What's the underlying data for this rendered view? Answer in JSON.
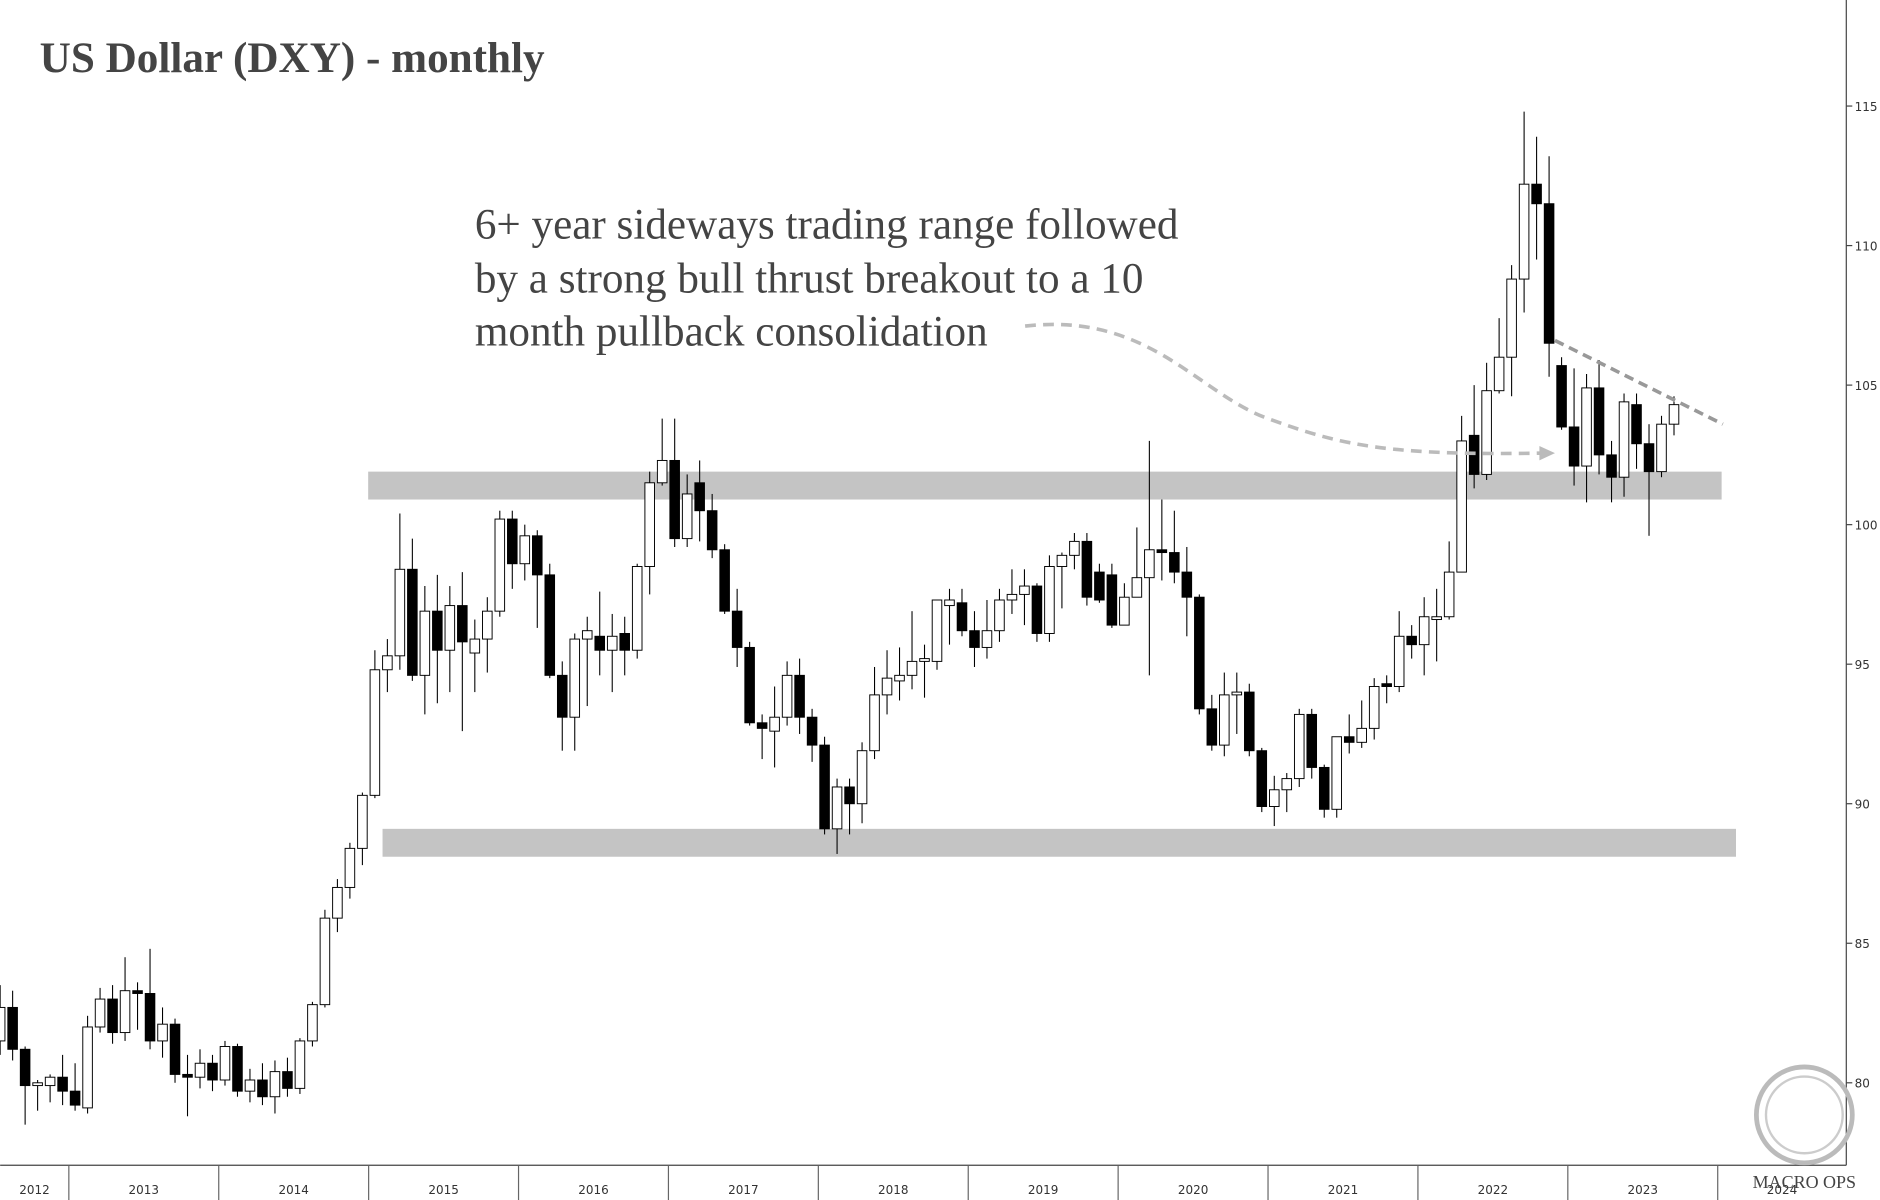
{
  "chart_data": {
    "type": "candlestick",
    "title": "US Dollar (DXY) - monthly",
    "annotation": [
      "6+ year sideways trading range followed",
      "by a strong bull thrust breakout to a 10",
      "month pullback consolidation"
    ],
    "watermark": "MACRO OPS",
    "year_labels": [
      "2012",
      "2013",
      "2014",
      "2015",
      "2016",
      "2017",
      "2018",
      "2019",
      "2020",
      "2021",
      "2022",
      "2023",
      "2024"
    ],
    "open": [
      81.5,
      82.7,
      81.2,
      79.9,
      79.9,
      80.2,
      79.7,
      79.1,
      82.0,
      83.0,
      81.8,
      83.3,
      83.2,
      81.5,
      82.1,
      80.3,
      80.2,
      80.7,
      80.1,
      81.3,
      79.7,
      80.1,
      79.5,
      80.4,
      79.8,
      81.5,
      82.8,
      85.9,
      87.0,
      88.4,
      90.3,
      94.8,
      95.3,
      98.4,
      94.6,
      96.9,
      95.5,
      97.1,
      95.4,
      95.9,
      96.9,
      100.2,
      98.6,
      99.6,
      98.2,
      94.6,
      93.1,
      95.9,
      96.0,
      95.5,
      96.1,
      95.5,
      98.5,
      101.5,
      102.3,
      99.5,
      101.5,
      100.5,
      99.1,
      96.9,
      95.6,
      92.9,
      92.6,
      93.1,
      94.6,
      93.1,
      92.1,
      89.1,
      90.6,
      90.0,
      91.9,
      93.9,
      94.4,
      94.6,
      95.1,
      95.1,
      97.1,
      97.2,
      96.2,
      95.6,
      96.2,
      97.3,
      97.5,
      97.8,
      96.1,
      98.5,
      98.9,
      99.4,
      98.3,
      98.2,
      96.4,
      97.4,
      98.1,
      99.1,
      99.0,
      98.3,
      97.4,
      93.4,
      92.1,
      93.9,
      94.0,
      91.9,
      89.9,
      90.5,
      90.9,
      93.2,
      91.3,
      89.8,
      92.4,
      92.2,
      92.7,
      94.3,
      94.2,
      96.0,
      95.7,
      96.6,
      96.7,
      98.3,
      103.2,
      101.8,
      104.8,
      106.0,
      108.8,
      112.2,
      111.5,
      105.7,
      103.5,
      102.1,
      104.9,
      102.5,
      101.7,
      104.3,
      102.9,
      101.9,
      103.6
    ],
    "high": [
      83.5,
      83.3,
      81.3,
      80.1,
      80.3,
      81.0,
      80.7,
      82.4,
      83.4,
      83.5,
      84.5,
      83.6,
      84.8,
      82.7,
      82.3,
      81.0,
      81.2,
      81.0,
      81.5,
      81.4,
      80.5,
      80.7,
      80.8,
      80.9,
      81.6,
      82.9,
      86.2,
      87.3,
      88.6,
      90.4,
      95.5,
      95.9,
      100.4,
      99.5,
      97.8,
      98.2,
      97.8,
      98.3,
      96.6,
      97.4,
      100.5,
      100.5,
      100.0,
      99.8,
      98.6,
      95.1,
      96.1,
      96.7,
      97.6,
      96.8,
      96.7,
      98.6,
      101.9,
      103.8,
      103.8,
      101.8,
      102.3,
      101.1,
      99.3,
      97.7,
      95.8,
      93.2,
      94.2,
      95.1,
      95.2,
      93.4,
      92.4,
      90.9,
      90.9,
      92.2,
      94.9,
      95.5,
      95.6,
      96.9,
      95.7,
      97.3,
      97.7,
      97.7,
      96.9,
      97.3,
      97.7,
      98.4,
      98.4,
      97.9,
      98.9,
      99.0,
      99.7,
      99.7,
      98.6,
      98.6,
      97.9,
      99.9,
      103.0,
      100.9,
      100.5,
      99.2,
      97.5,
      93.9,
      94.7,
      94.7,
      94.3,
      92.0,
      91.0,
      91.1,
      93.4,
      93.4,
      91.4,
      92.4,
      93.2,
      93.7,
      94.5,
      94.6,
      96.9,
      96.4,
      97.4,
      97.7,
      99.4,
      103.9,
      105.0,
      105.8,
      107.4,
      109.3,
      114.8,
      113.9,
      113.2,
      106.0,
      105.6,
      105.4,
      105.9,
      103.0,
      104.7,
      104.7,
      103.6,
      103.9,
      104.6
    ],
    "low": [
      81.0,
      80.8,
      78.5,
      79.0,
      79.3,
      79.2,
      79.0,
      78.9,
      81.8,
      81.4,
      81.5,
      81.9,
      81.2,
      80.9,
      80.0,
      78.8,
      79.8,
      79.7,
      79.9,
      79.5,
      79.3,
      79.2,
      78.9,
      79.5,
      79.6,
      81.3,
      82.7,
      85.4,
      86.6,
      87.8,
      90.2,
      94.0,
      94.8,
      94.4,
      93.2,
      93.6,
      94.0,
      92.6,
      94.0,
      94.7,
      96.7,
      97.7,
      98.0,
      96.3,
      94.5,
      91.9,
      91.9,
      93.5,
      94.6,
      94.0,
      94.6,
      95.2,
      97.5,
      101.4,
      99.2,
      99.2,
      99.4,
      98.8,
      96.8,
      94.9,
      92.8,
      91.6,
      91.3,
      92.8,
      92.5,
      91.5,
      88.9,
      88.2,
      88.9,
      89.3,
      91.6,
      93.2,
      93.7,
      94.1,
      93.8,
      94.8,
      95.7,
      96.0,
      94.9,
      95.2,
      95.8,
      96.8,
      96.4,
      95.8,
      95.8,
      97.0,
      98.4,
      97.1,
      97.2,
      96.3,
      96.4,
      97.4,
      94.6,
      98.0,
      97.9,
      96.0,
      93.2,
      91.9,
      91.7,
      92.5,
      91.7,
      89.7,
      89.2,
      89.7,
      90.6,
      90.9,
      89.5,
      89.5,
      91.8,
      92.0,
      92.3,
      93.6,
      94.0,
      95.2,
      94.6,
      95.1,
      96.6,
      98.3,
      101.3,
      101.6,
      104.7,
      104.6,
      107.6,
      109.5,
      105.3,
      103.4,
      101.4,
      100.8,
      101.8,
      100.8,
      101.0,
      102.0,
      99.6,
      101.7,
      103.2
    ],
    "close": [
      82.7,
      81.2,
      79.9,
      80.0,
      80.2,
      79.7,
      79.2,
      82.0,
      83.0,
      81.8,
      83.3,
      83.2,
      81.5,
      82.1,
      80.3,
      80.2,
      80.7,
      80.1,
      81.3,
      79.7,
      80.1,
      79.5,
      80.4,
      79.8,
      81.5,
      82.8,
      85.9,
      87.0,
      88.4,
      90.3,
      94.8,
      95.3,
      98.4,
      94.6,
      96.9,
      95.5,
      97.1,
      95.8,
      95.9,
      96.9,
      100.2,
      98.6,
      99.6,
      98.2,
      94.6,
      93.1,
      95.9,
      96.2,
      95.5,
      96.0,
      95.5,
      98.5,
      101.5,
      102.3,
      99.5,
      101.1,
      100.5,
      99.1,
      96.9,
      95.6,
      92.9,
      92.7,
      93.1,
      94.6,
      93.1,
      92.1,
      89.1,
      90.6,
      90.0,
      91.9,
      93.9,
      94.5,
      94.6,
      95.1,
      95.2,
      97.3,
      97.3,
      96.2,
      95.6,
      96.2,
      97.3,
      97.5,
      97.8,
      96.1,
      98.5,
      98.9,
      99.4,
      97.4,
      97.3,
      96.4,
      97.4,
      98.1,
      99.1,
      99.0,
      98.3,
      97.4,
      93.4,
      92.1,
      93.9,
      94.0,
      91.9,
      89.9,
      90.5,
      90.9,
      93.2,
      91.3,
      89.8,
      92.4,
      92.2,
      92.7,
      94.2,
      94.2,
      96.0,
      95.7,
      96.7,
      96.7,
      98.3,
      103.0,
      101.8,
      104.8,
      106.0,
      108.8,
      112.2,
      111.5,
      106.5,
      103.5,
      102.1,
      104.9,
      102.5,
      101.7,
      104.4,
      102.9,
      101.9,
      103.6,
      104.3
    ],
    "up_color": "#ffffff",
    "down_color": "#000000",
    "ylim": [
      75.8,
      118.8
    ],
    "yticks": [
      80,
      85,
      90,
      95,
      100,
      105,
      110,
      115
    ],
    "bands": [
      {
        "low": 100.9,
        "high": 101.9,
        "color": "#c4c4c4"
      },
      {
        "low": 88.1,
        "high": 89.1,
        "color": "#c4c4c4"
      }
    ],
    "trendline": [
      106.6,
      103.6
    ]
  }
}
